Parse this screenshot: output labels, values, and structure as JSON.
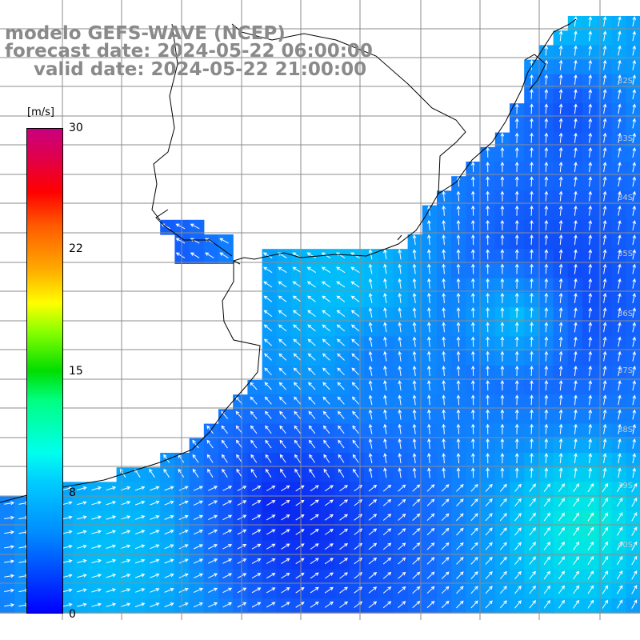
{
  "title": {
    "line1": "modelo GEFS-WAVE (NCEP)",
    "line2": "forecast date: 2024-05-22 06:00:00",
    "line3": "valid date: 2024-05-22 21:00:00"
  },
  "colorbar": {
    "unit": "[m/s]",
    "ticks": [
      "30",
      "22",
      "15",
      "8",
      "0"
    ],
    "tick_values": [
      30,
      22,
      15,
      8,
      0
    ],
    "range": [
      0,
      30
    ],
    "colors": [
      "#0000ff",
      "#0088ff",
      "#00ccff",
      "#00ffee",
      "#00ff80",
      "#00dd00",
      "#88ff00",
      "#ffff00",
      "#ffaa00",
      "#ff5a00",
      "#ff0000",
      "#e0004a",
      "#c80080"
    ]
  },
  "lat_labels": [
    "32S",
    "33S",
    "34S",
    "35S",
    "36S",
    "37S",
    "38S",
    "39S",
    "40S"
  ],
  "colors": {
    "title": "#8a8a8a",
    "land": "#ffffff",
    "coast": "#000000",
    "grid": "#909090",
    "arrow": "#ffffff"
  }
}
